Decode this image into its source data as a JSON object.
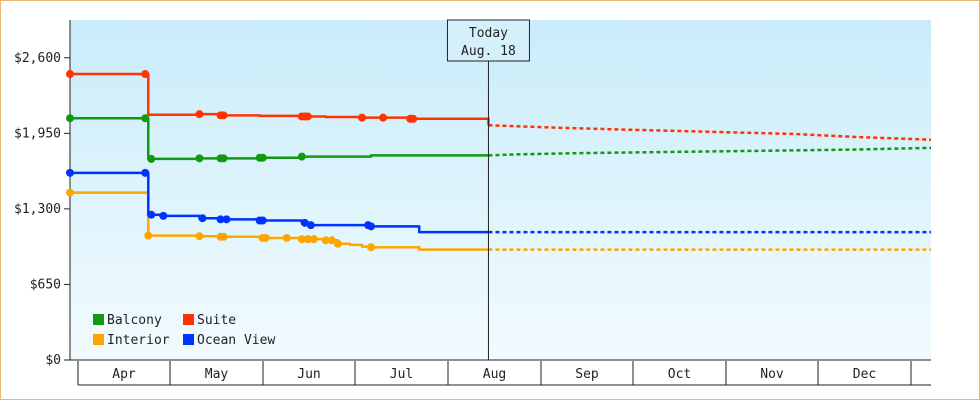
{
  "chart_data": {
    "type": "line",
    "title": "",
    "xlabel": "",
    "ylabel": "",
    "ylim": [
      0,
      2925
    ],
    "y_ticks": [
      0,
      650,
      1300,
      1950,
      2600
    ],
    "y_tick_labels": [
      "$0",
      "$650",
      "$1,300",
      "$1,950",
      "$2,600"
    ],
    "x_months": [
      "Apr",
      "May",
      "Jun",
      "Jul",
      "Aug",
      "Sep",
      "Oct",
      "Nov",
      "Dec"
    ],
    "x_range_days": [
      0,
      286
    ],
    "today": {
      "label": "Today",
      "date": "Aug. 18",
      "day": 139
    },
    "grid": false,
    "legend_position": "bottom-left",
    "series": [
      {
        "name": "Balcony",
        "color": "#119911",
        "points": [
          [
            0,
            2080
          ],
          [
            25,
            2080
          ],
          [
            26,
            1730
          ],
          [
            43,
            1735
          ],
          [
            50,
            1735
          ],
          [
            63,
            1740
          ],
          [
            77,
            1750
          ],
          [
            100,
            1760
          ],
          [
            116,
            1760
          ],
          [
            139,
            1760
          ]
        ],
        "marked_days": [
          0,
          25,
          27,
          43,
          50,
          51,
          63,
          64,
          77
        ],
        "forecast": [
          [
            139,
            1760
          ],
          [
            150,
            1770
          ],
          [
            170,
            1780
          ],
          [
            200,
            1790
          ],
          [
            230,
            1800
          ],
          [
            260,
            1810
          ],
          [
            286,
            1825
          ]
        ]
      },
      {
        "name": "Suite",
        "color": "#ff3300",
        "points": [
          [
            0,
            2460
          ],
          [
            25,
            2460
          ],
          [
            26,
            2110
          ],
          [
            43,
            2115
          ],
          [
            50,
            2105
          ],
          [
            63,
            2100
          ],
          [
            77,
            2095
          ],
          [
            85,
            2090
          ],
          [
            97,
            2085
          ],
          [
            113,
            2075
          ],
          [
            139,
            2020
          ]
        ],
        "marked_days": [
          0,
          25,
          43,
          50,
          51,
          77,
          78,
          79,
          97,
          104,
          113,
          114
        ],
        "forecast": [
          [
            139,
            2020
          ],
          [
            160,
            2000
          ],
          [
            180,
            1985
          ],
          [
            210,
            1965
          ],
          [
            240,
            1945
          ],
          [
            260,
            1920
          ],
          [
            286,
            1895
          ]
        ]
      },
      {
        "name": "Interior",
        "color": "#ffa500",
        "points": [
          [
            0,
            1440
          ],
          [
            25,
            1440
          ],
          [
            26,
            1070
          ],
          [
            43,
            1065
          ],
          [
            50,
            1060
          ],
          [
            63,
            1050
          ],
          [
            77,
            1040
          ],
          [
            85,
            1030
          ],
          [
            89,
            1000
          ],
          [
            93,
            990
          ],
          [
            97,
            975
          ],
          [
            100,
            970
          ],
          [
            116,
            950
          ],
          [
            139,
            950
          ]
        ],
        "marked_days": [
          0,
          26,
          43,
          50,
          51,
          64,
          65,
          72,
          77,
          79,
          81,
          85,
          87,
          89,
          100
        ],
        "forecast": [
          [
            139,
            950
          ],
          [
            286,
            950
          ]
        ]
      },
      {
        "name": "Ocean View",
        "color": "#0033ff",
        "points": [
          [
            0,
            1610
          ],
          [
            25,
            1610
          ],
          [
            26,
            1250
          ],
          [
            30,
            1240
          ],
          [
            43,
            1220
          ],
          [
            50,
            1210
          ],
          [
            63,
            1200
          ],
          [
            77,
            1180
          ],
          [
            80,
            1160
          ],
          [
            100,
            1150
          ],
          [
            116,
            1100
          ],
          [
            139,
            1100
          ]
        ],
        "marked_days": [
          0,
          25,
          27,
          31,
          44,
          50,
          52,
          63,
          64,
          78,
          80,
          99,
          100
        ],
        "forecast": [
          [
            139,
            1100
          ],
          [
            286,
            1100
          ]
        ]
      }
    ]
  }
}
